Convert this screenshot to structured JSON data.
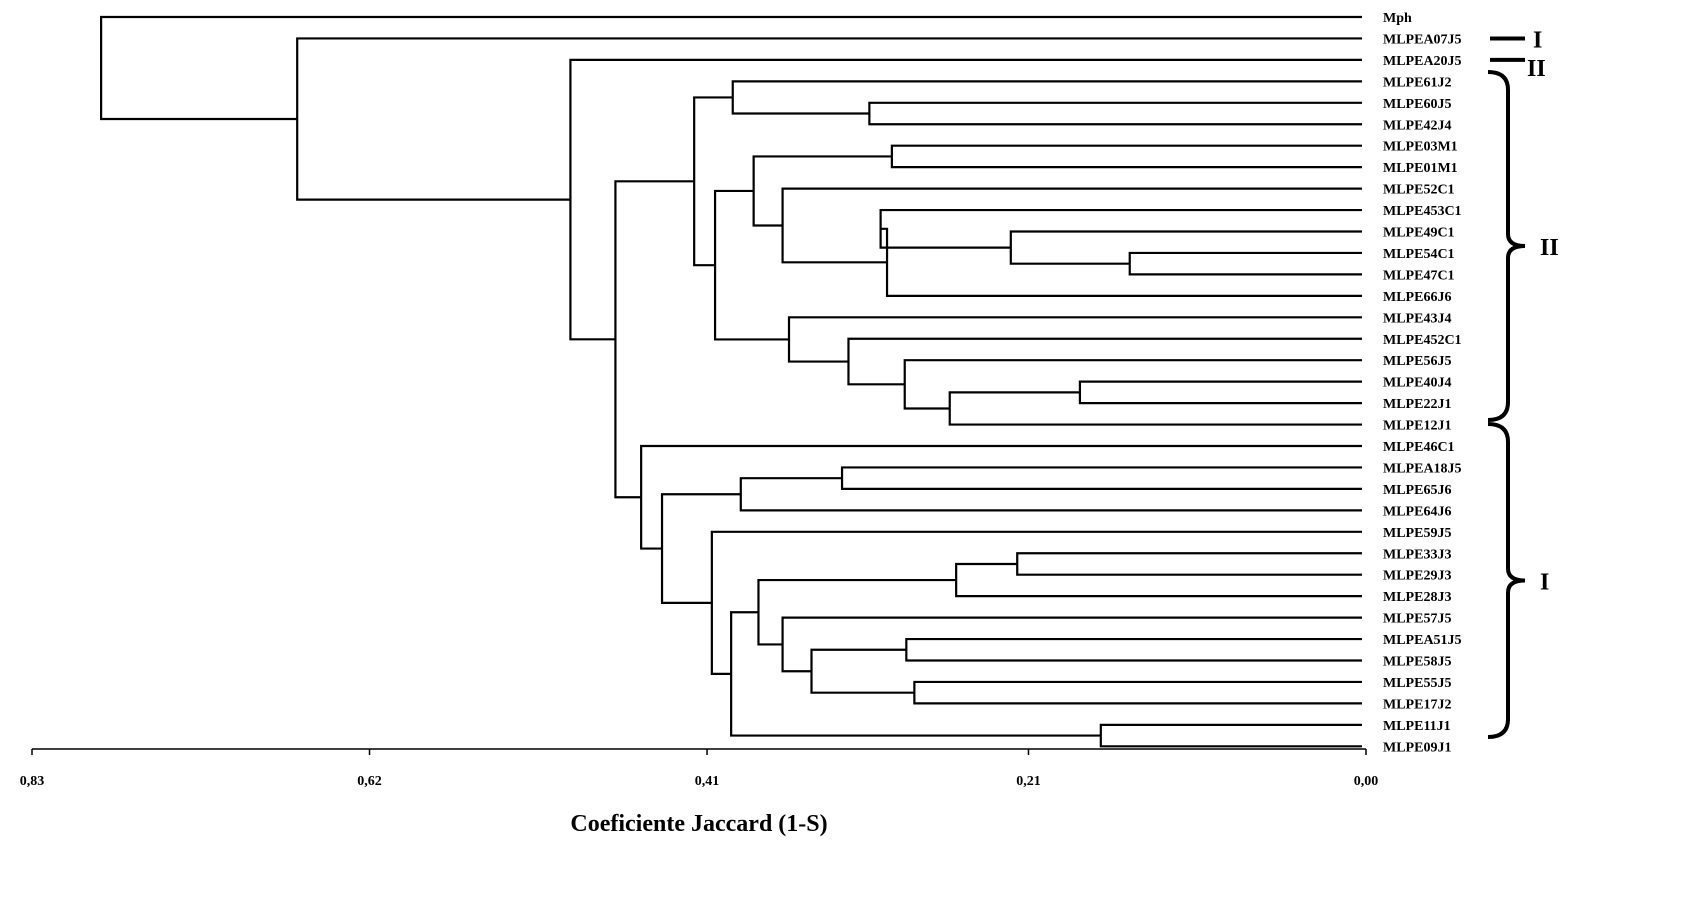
{
  "figure": {
    "axis_title": "Coeficiente Jaccard (1-S)",
    "axis_ticks": [
      "0,83",
      "0,62",
      "0,41",
      "0,21",
      "0,00"
    ],
    "axis_tick_values": [
      0.83,
      0.62,
      0.41,
      0.21,
      0.0
    ],
    "axis_range": [
      0.83,
      0.0
    ],
    "leaves": [
      "Mph",
      "MLPEA07J5",
      "MLPEA20J5",
      "MLPE61J2",
      "MLPE60J5",
      "MLPE42J4",
      "MLPE03M1",
      "MLPE01M1",
      "MLPE52C1",
      "MLPE453C1",
      "MLPE49C1",
      "MLPE54C1",
      "MLPE47C1",
      "MLPE66J6",
      "MLPE43J4",
      "MLPE452C1",
      "MLPE56J5",
      "MLPE40J4",
      "MLPE22J1",
      "MLPE12J1",
      "MLPE46C1",
      "MLPEA18J5",
      "MLPE65J6",
      "MLPE64J6",
      "MLPE59J5",
      "MLPE33J3",
      "MLPE29J3",
      "MLPE28J3",
      "MLPE57J5",
      "MLPEA51J5",
      "MLPE58J5",
      "MLPE55J5",
      "MLPE17J2",
      "MLPE11J1",
      "MLPE09J1"
    ],
    "merges": [
      {
        "a": "MLPE54C1",
        "b": "MLPE47C1",
        "h": 0.147
      },
      {
        "a": "MLPE40J4",
        "b": "MLPE22J1",
        "h": 0.178
      },
      {
        "a": "MLPE11J1",
        "b": "MLPE09J1",
        "h": 0.165
      },
      {
        "a": "MLPE33J3",
        "b": "MLPE29J3",
        "h": 0.217
      },
      {
        "a": "MLPE49C1",
        "b": "N1",
        "h": 0.221,
        "id": "N4"
      },
      {
        "a": "N2b",
        "b": "MLPE12J1",
        "h": 0.259
      },
      {
        "a": "N5",
        "b": "MLPE28J3",
        "h": 0.255
      },
      {
        "a": "MLPEA51J5",
        "b": "MLPE58J5",
        "h": 0.286
      },
      {
        "a": "MLPE55J5",
        "b": "MLPE17J2",
        "h": 0.281
      },
      {
        "a": "MLPE56J5",
        "b": "N6",
        "h": 0.287
      },
      {
        "a": "MLPE60J5",
        "b": "MLPE42J4",
        "h": 0.309
      },
      {
        "a": "MLPE03M1",
        "b": "MLPE01M1",
        "h": 0.295
      },
      {
        "a": "MLPE453C1",
        "b": "N4",
        "h": 0.302
      },
      {
        "a": "N8",
        "b": "MLPE66J6",
        "h": 0.298
      },
      {
        "a": "MLPEA18J5",
        "b": "MLPE65J6",
        "h": 0.326
      },
      {
        "a": "MLPE452C1",
        "b": "N9",
        "h": 0.322
      },
      {
        "a": "N10",
        "b": "N11",
        "h": 0.345
      },
      {
        "a": "MLPE57J5",
        "b": "N12",
        "h": 0.363
      },
      {
        "a": "MLPE52C1",
        "b": "N13",
        "h": 0.363
      },
      {
        "a": "MLPE43J4",
        "b": "N14",
        "h": 0.359
      },
      {
        "a": "N15",
        "b": "N7",
        "h": 0.378
      },
      {
        "a": "MLPE03M1-MLPE01M1",
        "b": "N16",
        "h": 0.381
      },
      {
        "a": "N18",
        "b": "MLPE64J6",
        "h": 0.389
      },
      {
        "a": "MLPE61J2",
        "b": "N17",
        "h": 0.394
      },
      {
        "a": "N19",
        "b": "N20",
        "h": 0.391
      },
      {
        "a": "N21",
        "b": "MLPE11J1-MLPE09J1",
        "h": 0.395
      },
      {
        "a": "N22",
        "b": "N23",
        "h": 0.418
      },
      {
        "a": "MLPE59J5",
        "b": "N24",
        "h": 0.407
      },
      {
        "a": "N25",
        "b": "N26",
        "h": 0.438
      },
      {
        "a": "MLPE46C1",
        "b": "N27",
        "h": 0.451
      },
      {
        "a": "N28",
        "b": "N29",
        "h": 0.467
      },
      {
        "a": "MLPEA20J5",
        "b": "N30",
        "h": 0.495
      },
      {
        "a": "MLPEA07J5",
        "b": "N31",
        "h": 0.665
      },
      {
        "a": "Mph",
        "b": "N32",
        "h": 0.787
      }
    ],
    "groups": [
      {
        "label": "I",
        "from": "MLPEA07J5",
        "to": "MLPEA07J5"
      },
      {
        "label": "II",
        "from": "MLPEA20J5",
        "to": "MLPEA20J5"
      },
      {
        "label": "II",
        "from": "MLPE61J2",
        "to": "MLPE12J1"
      },
      {
        "label": "I",
        "from": "MLPE46C1",
        "to": "MLPE09J1"
      }
    ]
  }
}
